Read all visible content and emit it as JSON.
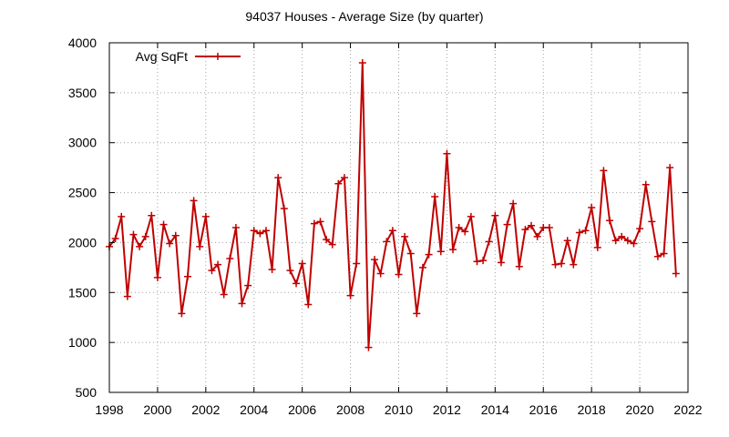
{
  "chart_data": {
    "type": "line",
    "title": "94037 Houses - Average Size (by quarter)",
    "xlabel": "",
    "ylabel": "",
    "xlim": [
      1998,
      2022
    ],
    "ylim": [
      500,
      4000
    ],
    "x_ticks": [
      "1998",
      "2000",
      "2002",
      "2004",
      "2006",
      "2008",
      "2010",
      "2012",
      "2014",
      "2016",
      "2018",
      "2020",
      "2022"
    ],
    "y_ticks": [
      "500",
      "1000",
      "1500",
      "2000",
      "2500",
      "3000",
      "3500",
      "4000"
    ],
    "grid": true,
    "legend_position": "top-left",
    "series": [
      {
        "name": "Avg SqFt",
        "color": "#c00000",
        "marker": "plus",
        "x": [
          1998.0,
          1998.25,
          1998.5,
          1998.75,
          1999.0,
          1999.25,
          1999.5,
          1999.75,
          2000.0,
          2000.25,
          2000.5,
          2000.75,
          2001.0,
          2001.25,
          2001.5,
          2001.75,
          2002.0,
          2002.25,
          2002.5,
          2002.75,
          2003.0,
          2003.25,
          2003.5,
          2003.75,
          2004.0,
          2004.25,
          2004.5,
          2004.75,
          2005.0,
          2005.25,
          2005.5,
          2005.75,
          2006.0,
          2006.25,
          2006.5,
          2006.75,
          2007.0,
          2007.25,
          2007.5,
          2007.75,
          2008.0,
          2008.25,
          2008.5,
          2008.75,
          2009.0,
          2009.25,
          2009.5,
          2009.75,
          2010.0,
          2010.25,
          2010.5,
          2010.75,
          2011.0,
          2011.25,
          2011.5,
          2011.75,
          2012.0,
          2012.25,
          2012.5,
          2012.75,
          2013.0,
          2013.25,
          2013.5,
          2013.75,
          2014.0,
          2014.25,
          2014.5,
          2014.75,
          2015.0,
          2015.25,
          2015.5,
          2015.75,
          2016.0,
          2016.25,
          2016.5,
          2016.75,
          2017.0,
          2017.25,
          2017.5,
          2017.75,
          2018.0,
          2018.25,
          2018.5,
          2018.75,
          2019.0,
          2019.25,
          2019.5,
          2019.75,
          2020.0,
          2020.25,
          2020.5,
          2020.75,
          2021.0,
          2021.25,
          2021.5
        ],
        "values": [
          1960,
          2040,
          2260,
          1460,
          2080,
          1960,
          2060,
          2270,
          1650,
          2180,
          1990,
          2070,
          1290,
          1660,
          2420,
          1960,
          2260,
          1720,
          1780,
          1480,
          1840,
          2150,
          1390,
          1570,
          2120,
          2090,
          2120,
          1730,
          2650,
          2340,
          1720,
          1590,
          1790,
          1380,
          2190,
          2210,
          2030,
          1980,
          2590,
          2650,
          1470,
          1790,
          3800,
          950,
          1830,
          1690,
          2010,
          2120,
          1680,
          2060,
          1890,
          1290,
          1750,
          1880,
          2460,
          1910,
          2890,
          1930,
          2150,
          2110,
          2260,
          1810,
          1820,
          2010,
          2270,
          1800,
          2180,
          2390,
          1760,
          2130,
          2170,
          2060,
          2150,
          2150,
          1780,
          1790,
          2020,
          1780,
          2100,
          2120,
          2350,
          1950,
          2720,
          2220,
          2020,
          2060,
          2020,
          1990,
          2140,
          2580,
          2210,
          1860,
          1890,
          2750,
          1690
        ]
      }
    ]
  }
}
